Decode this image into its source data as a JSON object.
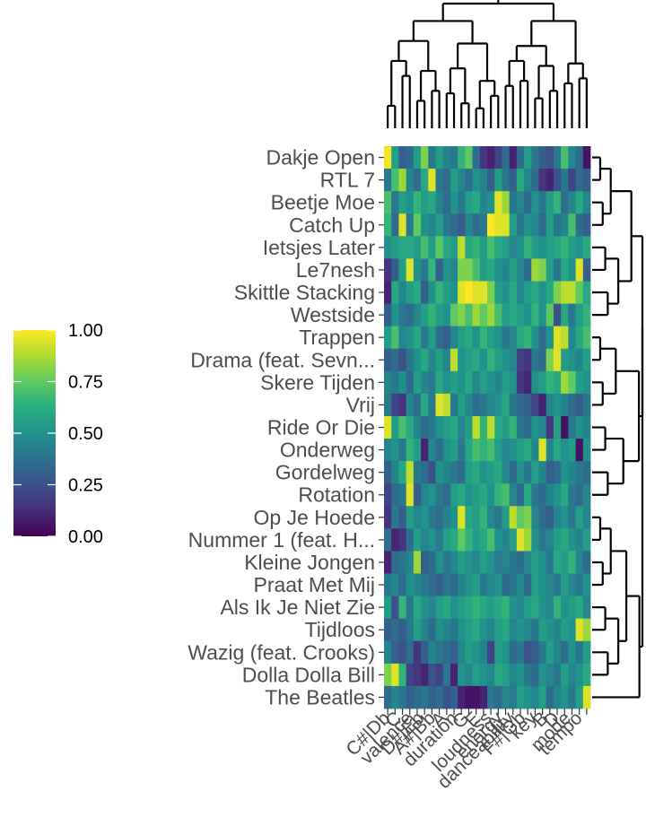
{
  "chart_data": {
    "type": "heatmap",
    "title": "",
    "xlabel": "",
    "ylabel": "",
    "rows": [
      "Dakje Open",
      "RTL 7",
      "Beetje Moe",
      "Catch Up",
      "Ietsjes Later",
      "Le7nesh",
      "Skittle Stacking",
      "Westside",
      "Trappen",
      "Drama (feat. Sevn...",
      "Skere Tijden",
      "Vrij",
      "Ride Or Die",
      "Onderweg",
      "Gordelweg",
      "Rotation",
      "Op Je Hoede",
      "Nummer 1 (feat. H...",
      "Kleine Jongen",
      "Praat Met Mij",
      "Als Ik Je Niet Zie",
      "Tijdloos",
      "Wazig (feat. Crooks)",
      "Dolla Dolla Bill",
      "The Beatles"
    ],
    "columns": [
      "C",
      "C#|Db",
      "valence",
      "D#|Eb",
      "A#|Bb",
      "F",
      "A",
      "duration",
      "G",
      "E",
      "loudness",
      "G#|Ab",
      "energy",
      "danceability",
      "key",
      "F#|Gb",
      "B",
      "D",
      "mode",
      "tempo"
    ],
    "column_labels_visible": [
      "C#|Db",
      "C",
      "valence",
      "D#|Eb",
      "A#|Bb",
      "A",
      "duration",
      "G",
      "E",
      "loudness",
      "energy",
      "danceability",
      "F#|Gb",
      "key",
      "B",
      "D",
      "mode",
      "tempo"
    ],
    "n_cell_columns": 28,
    "legend": {
      "position": "left",
      "ticks": [
        "0.00",
        "0.25",
        "0.50",
        "0.75",
        "1.00"
      ],
      "min": 0,
      "max": 1
    },
    "colors": {
      "low": "#440154",
      "mid_low": "#3b528b",
      "mid": "#21918c",
      "mid_high": "#5ec962",
      "high": "#fde725"
    },
    "values": [
      [
        0.98,
        0.55,
        0.3,
        0.35,
        0.55,
        0.8,
        0.4,
        0.55,
        0.45,
        0.4,
        0.65,
        0.75,
        0.35,
        0.15,
        0.1,
        0.2,
        0.35,
        0.1,
        0.35,
        0.55,
        0.4,
        0.3,
        0.25,
        0.4,
        0.7,
        0.45,
        0.35,
        0.05
      ],
      [
        0.4,
        0.7,
        0.85,
        0.45,
        0.35,
        0.6,
        0.95,
        0.4,
        0.35,
        0.55,
        0.45,
        0.35,
        0.5,
        0.45,
        0.3,
        0.55,
        0.4,
        0.3,
        0.6,
        0.45,
        0.35,
        0.15,
        0.1,
        0.25,
        0.4,
        0.2,
        0.35,
        0.3
      ],
      [
        0.7,
        0.4,
        0.55,
        0.5,
        0.65,
        0.55,
        0.6,
        0.45,
        0.35,
        0.5,
        0.4,
        0.55,
        0.6,
        0.45,
        0.5,
        0.95,
        0.85,
        0.4,
        0.45,
        0.35,
        0.5,
        0.4,
        0.55,
        0.65,
        0.35,
        0.45,
        0.6,
        0.45
      ],
      [
        0.65,
        0.35,
        0.95,
        0.4,
        0.75,
        0.5,
        0.45,
        0.55,
        0.4,
        0.35,
        0.3,
        0.45,
        0.35,
        0.4,
        1.0,
        0.95,
        0.95,
        0.55,
        0.4,
        0.5,
        0.45,
        0.35,
        0.55,
        0.4,
        0.45,
        0.7,
        0.35,
        0.3
      ],
      [
        0.5,
        0.55,
        0.6,
        0.6,
        0.55,
        0.7,
        0.55,
        0.75,
        0.6,
        0.55,
        0.9,
        0.6,
        0.65,
        0.55,
        0.7,
        0.6,
        0.55,
        0.45,
        0.5,
        0.65,
        0.55,
        0.5,
        0.55,
        0.6,
        0.65,
        0.55,
        0.5,
        0.6
      ],
      [
        0.15,
        0.3,
        0.55,
        0.95,
        0.5,
        0.4,
        0.65,
        0.3,
        0.5,
        0.45,
        0.8,
        0.8,
        0.7,
        0.55,
        0.6,
        0.5,
        0.45,
        0.55,
        0.45,
        0.35,
        0.85,
        0.8,
        0.55,
        0.4,
        0.6,
        0.5,
        0.95,
        0.3
      ],
      [
        0.1,
        0.6,
        0.45,
        0.55,
        0.6,
        0.3,
        0.5,
        0.65,
        0.55,
        0.5,
        0.95,
        1.0,
        0.95,
        0.95,
        0.8,
        0.55,
        0.5,
        0.6,
        0.45,
        0.55,
        0.6,
        0.5,
        0.6,
        0.8,
        0.9,
        0.9,
        0.75,
        0.6
      ],
      [
        0.3,
        0.5,
        0.4,
        0.35,
        0.45,
        0.55,
        0.65,
        0.55,
        0.5,
        0.75,
        0.8,
        0.7,
        0.85,
        0.75,
        0.85,
        0.7,
        0.55,
        0.6,
        0.55,
        0.5,
        0.65,
        0.5,
        0.75,
        0.25,
        0.6,
        0.4,
        0.55,
        0.65
      ],
      [
        0.55,
        0.7,
        0.45,
        0.5,
        0.6,
        0.4,
        0.55,
        0.35,
        0.3,
        0.45,
        0.55,
        0.6,
        0.5,
        0.65,
        0.55,
        0.5,
        0.4,
        0.45,
        0.6,
        0.65,
        0.5,
        0.35,
        0.5,
        0.95,
        0.9,
        0.45,
        0.6,
        0.7
      ],
      [
        0.3,
        0.35,
        0.25,
        0.4,
        0.5,
        0.6,
        0.45,
        0.55,
        0.45,
        0.9,
        0.5,
        0.55,
        0.6,
        0.5,
        0.65,
        0.55,
        0.5,
        0.45,
        0.2,
        0.15,
        0.4,
        0.35,
        0.8,
        0.95,
        0.55,
        0.5,
        0.45,
        0.55
      ],
      [
        0.45,
        0.4,
        0.5,
        0.35,
        0.55,
        0.45,
        0.4,
        0.6,
        0.5,
        0.55,
        0.5,
        0.6,
        0.45,
        0.55,
        0.5,
        0.45,
        0.55,
        0.5,
        0.15,
        0.1,
        0.5,
        0.55,
        0.65,
        0.6,
        0.85,
        0.75,
        0.55,
        0.5
      ],
      [
        0.4,
        0.2,
        0.15,
        0.45,
        0.35,
        0.6,
        0.4,
        0.95,
        0.9,
        0.4,
        0.55,
        0.45,
        0.35,
        0.4,
        0.45,
        0.5,
        0.6,
        0.4,
        0.35,
        0.3,
        0.2,
        0.1,
        0.45,
        0.5,
        0.45,
        0.35,
        0.3,
        0.4
      ],
      [
        0.95,
        0.55,
        0.7,
        0.6,
        0.45,
        0.35,
        0.4,
        0.5,
        0.55,
        0.6,
        0.45,
        0.55,
        0.9,
        0.65,
        0.9,
        0.6,
        0.55,
        0.65,
        0.4,
        0.35,
        0.5,
        0.45,
        0.15,
        0.55,
        0.05,
        0.4,
        0.5,
        0.45
      ],
      [
        0.45,
        0.5,
        0.4,
        0.65,
        0.55,
        0.1,
        0.45,
        0.35,
        0.5,
        0.55,
        0.4,
        0.6,
        0.7,
        0.65,
        0.7,
        0.55,
        0.45,
        0.5,
        0.55,
        0.6,
        0.45,
        0.95,
        0.45,
        0.6,
        0.5,
        0.55,
        0.05,
        0.5
      ],
      [
        0.3,
        0.45,
        0.6,
        0.9,
        0.4,
        0.35,
        0.25,
        0.5,
        0.45,
        0.4,
        0.35,
        0.55,
        0.6,
        0.5,
        0.55,
        0.6,
        0.45,
        0.35,
        0.5,
        0.4,
        0.55,
        0.45,
        0.3,
        0.35,
        0.5,
        0.45,
        0.4,
        0.35
      ],
      [
        0.2,
        0.35,
        0.4,
        0.95,
        0.3,
        0.45,
        0.5,
        0.4,
        0.35,
        0.55,
        0.6,
        0.5,
        0.55,
        0.6,
        0.5,
        0.65,
        0.7,
        0.45,
        0.35,
        0.6,
        0.4,
        0.35,
        0.45,
        0.5,
        0.6,
        0.4,
        0.35,
        0.45
      ],
      [
        0.15,
        0.4,
        0.3,
        0.55,
        0.45,
        0.5,
        0.4,
        0.35,
        0.45,
        0.5,
        0.95,
        0.6,
        0.55,
        0.65,
        0.45,
        0.4,
        0.55,
        0.9,
        0.75,
        0.8,
        0.45,
        0.35,
        0.3,
        0.45,
        0.5,
        0.4,
        0.55,
        0.45
      ],
      [
        0.35,
        0.1,
        0.15,
        0.35,
        0.55,
        0.45,
        0.5,
        0.4,
        0.55,
        0.6,
        0.75,
        0.65,
        0.55,
        0.6,
        0.7,
        0.5,
        0.45,
        0.55,
        0.95,
        0.85,
        0.5,
        0.4,
        0.45,
        0.55,
        0.6,
        0.5,
        0.45,
        0.55
      ],
      [
        0.1,
        0.35,
        0.4,
        0.45,
        0.85,
        0.3,
        0.35,
        0.5,
        0.4,
        0.45,
        0.55,
        0.5,
        0.45,
        0.55,
        0.5,
        0.4,
        0.45,
        0.4,
        0.35,
        0.45,
        0.55,
        0.5,
        0.4,
        0.6,
        0.55,
        0.65,
        0.45,
        0.35
      ],
      [
        0.4,
        0.45,
        0.35,
        0.5,
        0.45,
        0.4,
        0.35,
        0.3,
        0.4,
        0.35,
        0.45,
        0.5,
        0.55,
        0.4,
        0.45,
        0.5,
        0.35,
        0.4,
        0.45,
        0.35,
        0.55,
        0.5,
        0.45,
        0.4,
        0.55,
        0.45,
        0.4,
        0.5
      ],
      [
        0.55,
        0.25,
        0.65,
        0.4,
        0.6,
        0.5,
        0.45,
        0.55,
        0.6,
        0.5,
        0.55,
        0.6,
        0.65,
        0.6,
        0.55,
        0.6,
        0.65,
        0.5,
        0.45,
        0.55,
        0.6,
        0.5,
        0.45,
        0.65,
        0.5,
        0.55,
        0.6,
        0.45
      ],
      [
        0.3,
        0.35,
        0.3,
        0.4,
        0.55,
        0.45,
        0.35,
        0.5,
        0.45,
        0.4,
        0.5,
        0.55,
        0.6,
        0.5,
        0.45,
        0.55,
        0.6,
        0.45,
        0.5,
        0.45,
        0.4,
        0.55,
        0.5,
        0.45,
        0.55,
        0.5,
        0.95,
        0.85
      ],
      [
        0.45,
        0.3,
        0.25,
        0.35,
        0.15,
        0.3,
        0.45,
        0.4,
        0.35,
        0.3,
        0.45,
        0.55,
        0.5,
        0.45,
        0.2,
        0.55,
        0.5,
        0.35,
        0.4,
        0.25,
        0.3,
        0.4,
        0.55,
        0.45,
        0.35,
        0.5,
        0.4,
        0.55
      ],
      [
        0.8,
        0.95,
        0.65,
        0.2,
        0.15,
        0.1,
        0.25,
        0.2,
        0.4,
        0.1,
        0.5,
        0.45,
        0.55,
        0.5,
        0.45,
        0.6,
        0.55,
        0.45,
        0.5,
        0.4,
        0.35,
        0.5,
        0.45,
        0.4,
        0.55,
        0.45,
        0.5,
        0.6
      ],
      [
        0.35,
        0.45,
        0.4,
        0.3,
        0.35,
        0.4,
        0.3,
        0.35,
        0.25,
        0.3,
        0.1,
        0.05,
        0.05,
        0.1,
        0.4,
        0.35,
        0.45,
        0.4,
        0.55,
        0.5,
        0.45,
        0.55,
        0.35,
        0.45,
        0.5,
        0.4,
        0.55,
        0.95
      ]
    ]
  }
}
